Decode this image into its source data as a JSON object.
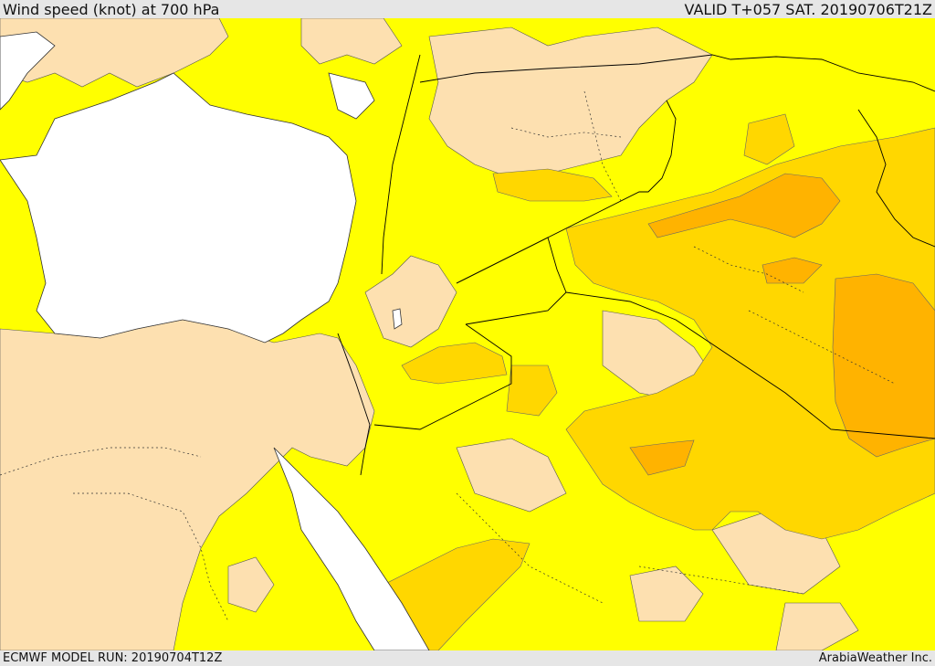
{
  "header": {
    "title": "Wind speed (knot) at 700 hPa",
    "valid": "VALID T+057 SAT. 20190706T21Z"
  },
  "footer": {
    "model_run": "ECMWF MODEL RUN: 20190704T12Z",
    "credit": "ArabiaWeather Inc."
  },
  "map": {
    "field": "wind speed",
    "level": "700 hPa",
    "colors": {
      "sea": "#ffffff",
      "calm": "#fde0b0",
      "light": "#ffff00",
      "moderate": "#ffd700",
      "strong": "#ffb300",
      "boundary": "#000000"
    }
  }
}
